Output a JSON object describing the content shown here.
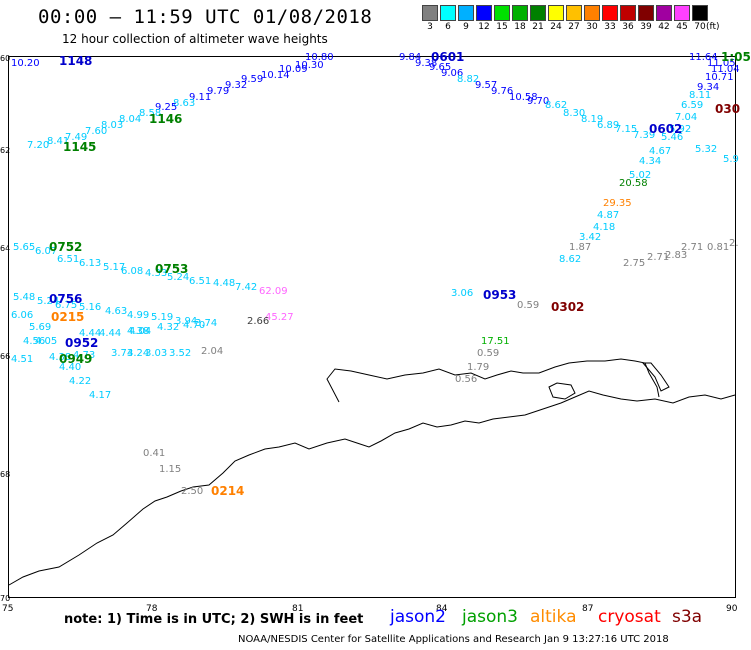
{
  "header": {
    "title": "00:00 – 11:59 UTC 01/08/2018",
    "subtitle": "12 hour collection of altimeter wave heights"
  },
  "legend": {
    "unit_label": "(ft)",
    "swatches": [
      {
        "label": "3",
        "color": "#808080"
      },
      {
        "label": "6",
        "color": "#00ffff"
      },
      {
        "label": "9",
        "color": "#00b0ff"
      },
      {
        "label": "12",
        "color": "#0000ff"
      },
      {
        "label": "15",
        "color": "#00e000"
      },
      {
        "label": "18",
        "color": "#00b000"
      },
      {
        "label": "21",
        "color": "#008000"
      },
      {
        "label": "24",
        "color": "#ffff00"
      },
      {
        "label": "27",
        "color": "#ffc000"
      },
      {
        "label": "30",
        "color": "#ff8000"
      },
      {
        "label": "33",
        "color": "#ff0000"
      },
      {
        "label": "36",
        "color": "#c00000"
      },
      {
        "label": "39",
        "color": "#800000"
      },
      {
        "label": "42",
        "color": "#a000a0"
      },
      {
        "label": "45",
        "color": "#ff40ff"
      },
      {
        "label": "70",
        "color": "#000000"
      }
    ]
  },
  "axes": {
    "lat_labels": [
      "60",
      "62",
      "64",
      "66",
      "68",
      "70"
    ],
    "lon_labels": [
      "75",
      "78",
      "81",
      "84",
      "87",
      "90"
    ]
  },
  "labels": [
    {
      "t": "10.20",
      "c": "#0000ff"
    },
    {
      "t": "10.80",
      "c": "#0000ff"
    },
    {
      "t": "10.30",
      "c": "#0000ff"
    },
    {
      "t": "10.09",
      "c": "#0000ff"
    },
    {
      "t": "10.14",
      "c": "#0000ff"
    },
    {
      "t": "9.59",
      "c": "#0000ff"
    },
    {
      "t": "9.32",
      "c": "#0000ff"
    },
    {
      "t": "9.79",
      "c": "#0000ff"
    },
    {
      "t": "9.11",
      "c": "#0000ff"
    },
    {
      "t": "8.63",
      "c": "#00ccff"
    },
    {
      "t": "9.25",
      "c": "#0000ff"
    },
    {
      "t": "8.58",
      "c": "#00ccff"
    },
    {
      "t": "8.04",
      "c": "#00ccff"
    },
    {
      "t": "8.03",
      "c": "#00ccff"
    },
    {
      "t": "7.60",
      "c": "#00ccff"
    },
    {
      "t": "7.49",
      "c": "#00ccff"
    },
    {
      "t": "8.41",
      "c": "#00ccff"
    },
    {
      "t": "7.20",
      "c": "#00ccff"
    },
    {
      "t": "9.84",
      "c": "#0000ff"
    },
    {
      "t": "9.38",
      "c": "#0000ff"
    },
    {
      "t": "9.65",
      "c": "#0000ff"
    },
    {
      "t": "9.06",
      "c": "#0000ff"
    },
    {
      "t": "8.82",
      "c": "#00ccff"
    },
    {
      "t": "9.57",
      "c": "#0000ff"
    },
    {
      "t": "9.76",
      "c": "#0000ff"
    },
    {
      "t": "10.58",
      "c": "#0000ff"
    },
    {
      "t": "9.70",
      "c": "#0000ff"
    },
    {
      "t": "8.62",
      "c": "#00ccff"
    },
    {
      "t": "8.30",
      "c": "#00ccff"
    },
    {
      "t": "8.19",
      "c": "#00ccff"
    },
    {
      "t": "6.89",
      "c": "#00ccff"
    },
    {
      "t": "7.15",
      "c": "#00ccff"
    },
    {
      "t": "7.39",
      "c": "#00ccff"
    },
    {
      "t": "11.64",
      "c": "#0000ff"
    },
    {
      "t": "11.05",
      "c": "#0000ff"
    },
    {
      "t": "11.04",
      "c": "#0000ff"
    },
    {
      "t": "10.71",
      "c": "#0000ff"
    },
    {
      "t": "9.34",
      "c": "#0000ff"
    },
    {
      "t": "8.11",
      "c": "#00ccff"
    },
    {
      "t": "6.59",
      "c": "#00ccff"
    },
    {
      "t": "7.04",
      "c": "#00ccff"
    },
    {
      "t": "5.92",
      "c": "#00ccff"
    },
    {
      "t": "5.46",
      "c": "#00ccff"
    },
    {
      "t": "4.67",
      "c": "#00ccff"
    },
    {
      "t": "4.34",
      "c": "#00ccff"
    },
    {
      "t": "5.02",
      "c": "#00ccff"
    },
    {
      "t": "5.32",
      "c": "#00ccff"
    },
    {
      "t": "5.9",
      "c": "#00ccff"
    },
    {
      "t": "20.58",
      "c": "#008000"
    },
    {
      "t": "29.35",
      "c": "#ff8000"
    },
    {
      "t": "4.87",
      "c": "#00ccff"
    },
    {
      "t": "4.18",
      "c": "#00ccff"
    },
    {
      "t": "3.42",
      "c": "#00ccff"
    },
    {
      "t": "1.87",
      "c": "#808080"
    },
    {
      "t": "8.62",
      "c": "#00ccff"
    },
    {
      "t": "2.75",
      "c": "#808080"
    },
    {
      "t": "2.71",
      "c": "#808080"
    },
    {
      "t": "2.83",
      "c": "#808080"
    },
    {
      "t": "2.71",
      "c": "#808080"
    },
    {
      "t": "0.81",
      "c": "#808080"
    },
    {
      "t": "2.",
      "c": "#808080"
    },
    {
      "t": "5.65",
      "c": "#00ccff"
    },
    {
      "t": "6.07",
      "c": "#00ccff"
    },
    {
      "t": "6.51",
      "c": "#00ccff"
    },
    {
      "t": "6.13",
      "c": "#00ccff"
    },
    {
      "t": "5.17",
      "c": "#00ccff"
    },
    {
      "t": "6.08",
      "c": "#00ccff"
    },
    {
      "t": "4.33",
      "c": "#00ccff"
    },
    {
      "t": "5.24",
      "c": "#00ccff"
    },
    {
      "t": "6.51",
      "c": "#00ccff"
    },
    {
      "t": "4.48",
      "c": "#00ccff"
    },
    {
      "t": "7.42",
      "c": "#00ccff"
    },
    {
      "t": "62.09",
      "c": "#ff66ff"
    },
    {
      "t": "45.27",
      "c": "#ff66ff"
    },
    {
      "t": "2.66",
      "c": "#404040"
    },
    {
      "t": "5.48",
      "c": "#00ccff"
    },
    {
      "t": "5.24",
      "c": "#00ccff"
    },
    {
      "t": "6.75",
      "c": "#00ccff"
    },
    {
      "t": "5.16",
      "c": "#00ccff"
    },
    {
      "t": "4.63",
      "c": "#00ccff"
    },
    {
      "t": "4.99",
      "c": "#00ccff"
    },
    {
      "t": "5.19",
      "c": "#00ccff"
    },
    {
      "t": "3.94",
      "c": "#00ccff"
    },
    {
      "t": "3.74",
      "c": "#00ccff"
    },
    {
      "t": "6.06",
      "c": "#00ccff"
    },
    {
      "t": "4.04",
      "c": "#00ccff"
    },
    {
      "t": "4.32",
      "c": "#00ccff"
    },
    {
      "t": "4.70",
      "c": "#00ccff"
    },
    {
      "t": "5.69",
      "c": "#00ccff"
    },
    {
      "t": "4.44",
      "c": "#00ccff"
    },
    {
      "t": "4.44",
      "c": "#00ccff"
    },
    {
      "t": "4.38",
      "c": "#00ccff"
    },
    {
      "t": "4.05",
      "c": "#00ccff"
    },
    {
      "t": "4.56",
      "c": "#00ccff"
    },
    {
      "t": "4.51",
      "c": "#00ccff"
    },
    {
      "t": "4.38",
      "c": "#00ccff"
    },
    {
      "t": "4.73",
      "c": "#00ccff"
    },
    {
      "t": "3.73",
      "c": "#00ccff"
    },
    {
      "t": "4.24",
      "c": "#00ccff"
    },
    {
      "t": "3.03",
      "c": "#00ccff"
    },
    {
      "t": "3.52",
      "c": "#00ccff"
    },
    {
      "t": "2.04",
      "c": "#808080"
    },
    {
      "t": "4.40",
      "c": "#00ccff"
    },
    {
      "t": "4.22",
      "c": "#00ccff"
    },
    {
      "t": "4.17",
      "c": "#00ccff"
    },
    {
      "t": "3.06",
      "c": "#00ccff"
    },
    {
      "t": "0.59",
      "c": "#808080"
    },
    {
      "t": "17.51",
      "c": "#00b000"
    },
    {
      "t": "0.59",
      "c": "#808080"
    },
    {
      "t": "1.79",
      "c": "#808080"
    },
    {
      "t": "0.56",
      "c": "#808080"
    },
    {
      "t": "0.41",
      "c": "#808080"
    },
    {
      "t": "1.15",
      "c": "#808080"
    },
    {
      "t": "2.50",
      "c": "#808080"
    }
  ],
  "passes": [
    {
      "t": "1148",
      "c": "#0000cc"
    },
    {
      "t": "1146",
      "c": "#008000"
    },
    {
      "t": "1145",
      "c": "#008000"
    },
    {
      "t": "0601",
      "c": "#0000cc"
    },
    {
      "t": "0602",
      "c": "#0000cc"
    },
    {
      "t": "030",
      "c": "#800000"
    },
    {
      "t": "0752",
      "c": "#008000"
    },
    {
      "t": "0753",
      "c": "#008000"
    },
    {
      "t": "0756",
      "c": "#0000cc"
    },
    {
      "t": "0215",
      "c": "#ff8000"
    },
    {
      "t": "0952",
      "c": "#0000cc"
    },
    {
      "t": "0949",
      "c": "#008000"
    },
    {
      "t": "0953",
      "c": "#0000cc"
    },
    {
      "t": "0302",
      "c": "#800000"
    },
    {
      "t": "0214",
      "c": "#ff8000"
    },
    {
      "t": "1:05",
      "c": "#008000"
    }
  ],
  "footer": {
    "note": "note: 1) Time is in UTC; 2) SWH is in feet",
    "sats": [
      {
        "name": "jason2",
        "color": "#0000ff"
      },
      {
        "name": "jason3",
        "color": "#00a000"
      },
      {
        "name": "altika",
        "color": "#ff8c00"
      },
      {
        "name": "cryosat",
        "color": "#ff0000"
      },
      {
        "name": "s3a",
        "color": "#800000"
      }
    ],
    "credit": "NOAA/NESDIS Center for Satellite Applications and Research    Jan  9 13:27:16 UTC 2018"
  }
}
